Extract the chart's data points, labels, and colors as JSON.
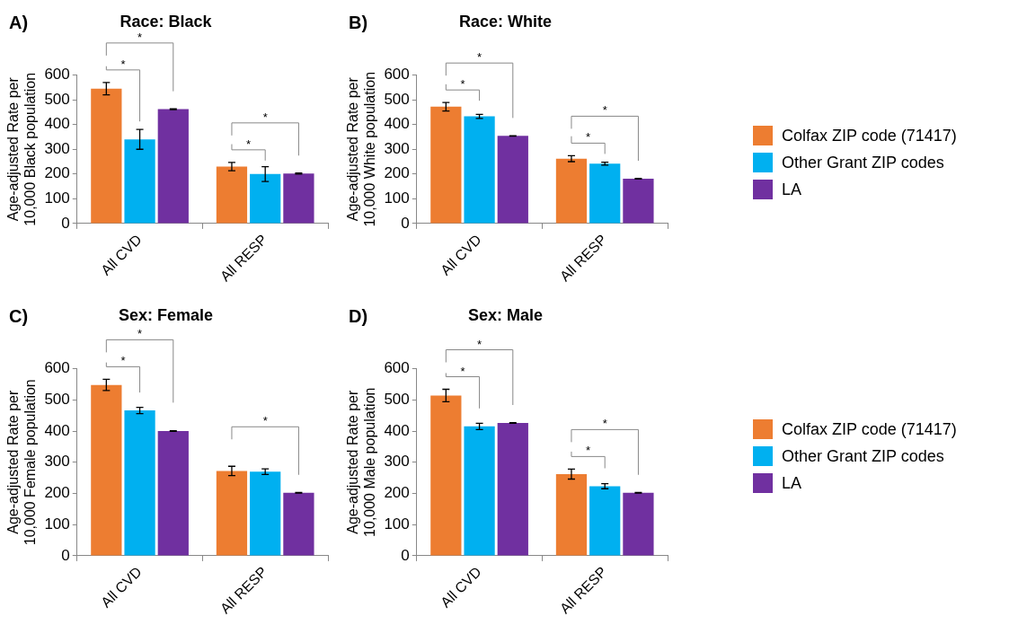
{
  "chart_data": [
    {
      "type": "bar",
      "title": "Race: Black",
      "ylabel": "Age-adjusted Rate per\n10,000 Black population",
      "categories": [
        "All CVD",
        "All RESP"
      ],
      "ylim": [
        0,
        600
      ],
      "yticks": [
        0,
        100,
        200,
        300,
        400,
        500,
        600
      ],
      "grid": false,
      "legend": false,
      "series": [
        {
          "color": "#ed7d31",
          "values": [
            545,
            230
          ],
          "errors": [
            25,
            17
          ]
        },
        {
          "color": "#00b0f0",
          "values": [
            340,
            200
          ],
          "errors": [
            40,
            30
          ]
        },
        {
          "color": "#7030a0",
          "values": [
            462,
            202
          ],
          "errors": [
            2,
            2
          ]
        }
      ],
      "annotations": [
        "A)",
        "*",
        "*",
        "*",
        "*"
      ]
    },
    {
      "type": "bar",
      "title": "Race: White",
      "ylabel": "Age-adjusted Rate per\n10,000 White population",
      "categories": [
        "All CVD",
        "All RESP"
      ],
      "ylim": [
        0,
        600
      ],
      "yticks": [
        0,
        100,
        200,
        300,
        400,
        500,
        600
      ],
      "grid": false,
      "legend": "right",
      "series": [
        {
          "name": "Colfax ZIP code (71417)",
          "color": "#ed7d31",
          "values": [
            472,
            262
          ],
          "errors": [
            17,
            12
          ]
        },
        {
          "name": "Other Grant ZIP codes",
          "color": "#00b0f0",
          "values": [
            433,
            242
          ],
          "errors": [
            8,
            6
          ]
        },
        {
          "name": "LA",
          "color": "#7030a0",
          "values": [
            354,
            181
          ],
          "errors": [
            1,
            1
          ]
        }
      ],
      "annotations": [
        "B)",
        "*",
        "*",
        "*",
        "*"
      ]
    },
    {
      "type": "bar",
      "title": "Sex: Female",
      "ylabel": "Age-adjusted Rate per\n10,000 Female population",
      "categories": [
        "All CVD",
        "All RESP"
      ],
      "ylim": [
        0,
        600
      ],
      "yticks": [
        0,
        100,
        200,
        300,
        400,
        500,
        600
      ],
      "grid": false,
      "legend": false,
      "series": [
        {
          "color": "#ed7d31",
          "values": [
            548,
            272
          ],
          "errors": [
            18,
            15
          ]
        },
        {
          "color": "#00b0f0",
          "values": [
            466,
            270
          ],
          "errors": [
            10,
            9
          ]
        },
        {
          "color": "#7030a0",
          "values": [
            400,
            202
          ],
          "errors": [
            1,
            1
          ]
        }
      ],
      "annotations": [
        "C)",
        "*",
        "*",
        "*"
      ]
    },
    {
      "type": "bar",
      "title": "Sex: Male",
      "ylabel": "Age-adjusted Rate per\n10,000 Male population",
      "categories": [
        "All CVD",
        "All RESP"
      ],
      "ylim": [
        0,
        600
      ],
      "yticks": [
        0,
        100,
        200,
        300,
        400,
        500,
        600
      ],
      "grid": false,
      "legend": "right",
      "series": [
        {
          "name": "Colfax ZIP code (71417)",
          "color": "#ed7d31",
          "values": [
            514,
            262
          ],
          "errors": [
            20,
            16
          ]
        },
        {
          "name": "Other Grant ZIP codes",
          "color": "#00b0f0",
          "values": [
            415,
            223
          ],
          "errors": [
            10,
            8
          ]
        },
        {
          "name": "LA",
          "color": "#7030a0",
          "values": [
            426,
            202
          ],
          "errors": [
            1,
            1
          ]
        }
      ],
      "annotations": [
        "D)",
        "*",
        "*",
        "*",
        "*"
      ]
    }
  ]
}
